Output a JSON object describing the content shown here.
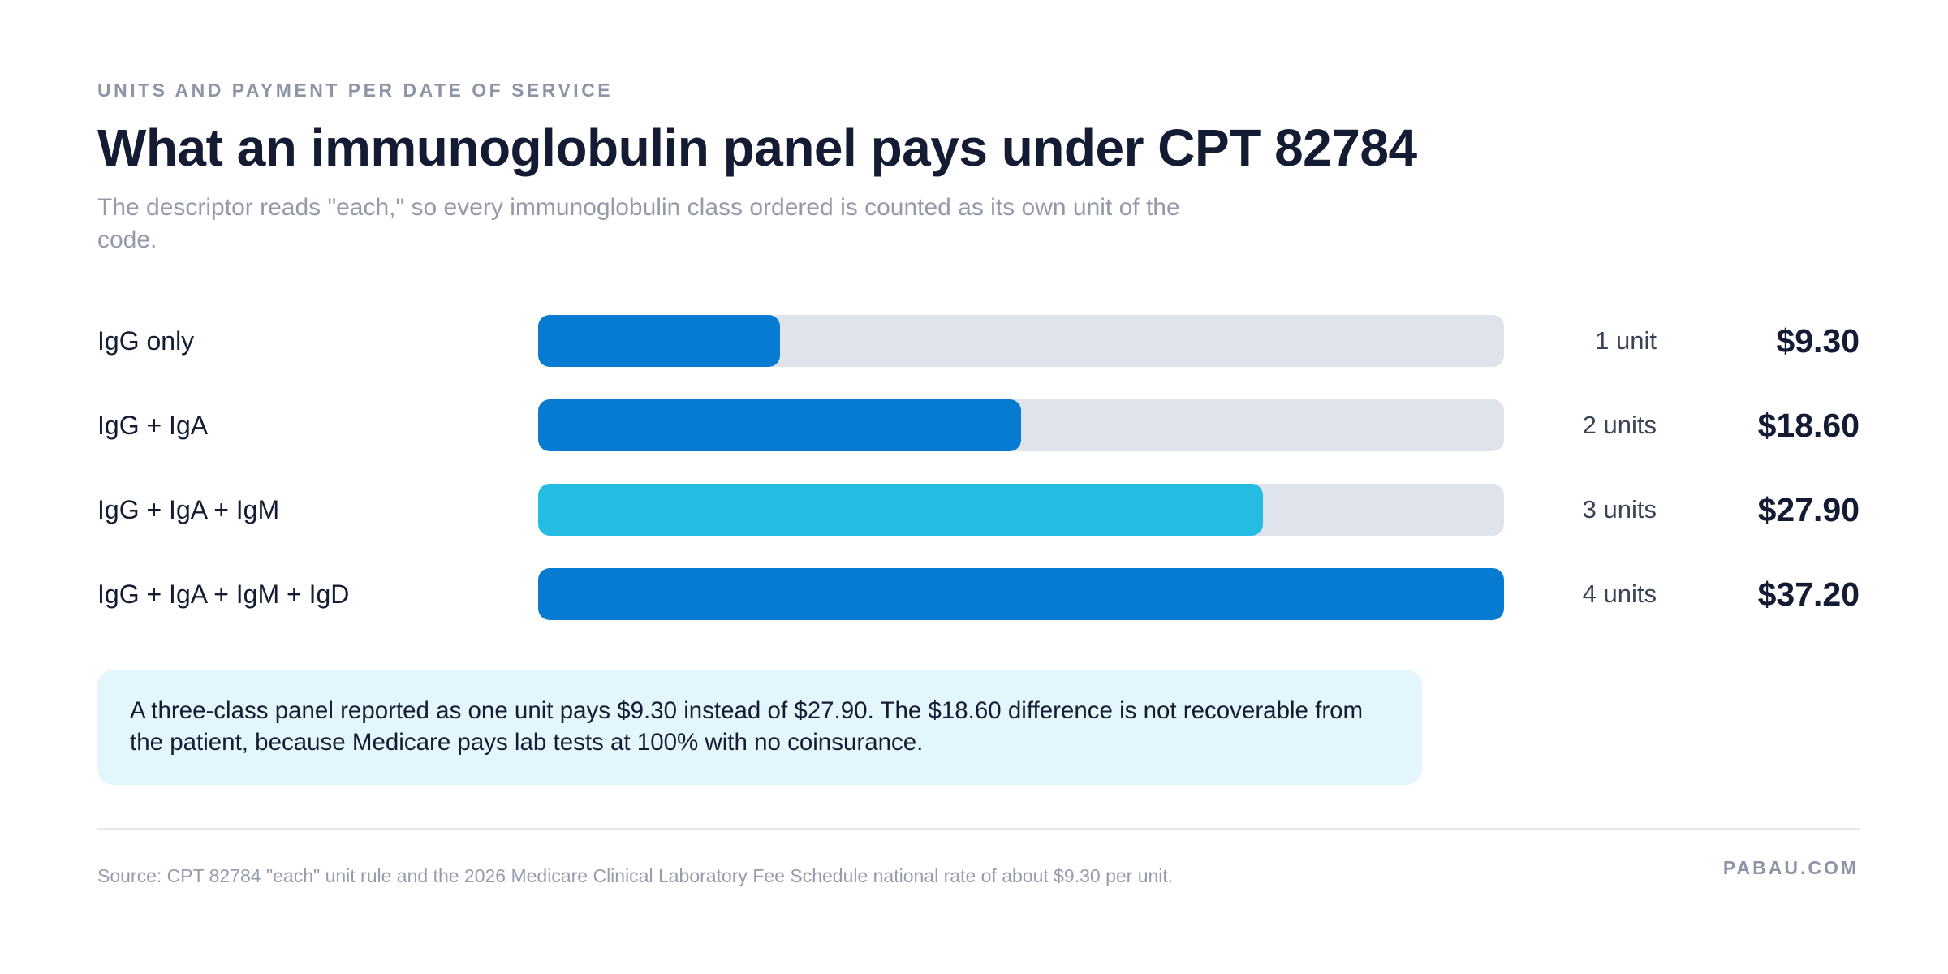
{
  "header": {
    "eyebrow": "UNITS AND PAYMENT PER DATE OF SERVICE",
    "title": "What an immunoglobulin panel pays under CPT 82784",
    "subtitle": "The descriptor reads \"each,\" so every immunoglobulin class ordered is counted as its own unit of the code."
  },
  "chart_data": {
    "type": "bar",
    "orientation": "horizontal",
    "categories": [
      "IgG only",
      "IgG + IgA",
      "IgG + IgA + IgM",
      "IgG + IgA + IgM + IgD"
    ],
    "values": [
      1,
      2,
      3,
      4
    ],
    "value_labels": [
      "1 unit",
      "2 units",
      "3 units",
      "4 units"
    ],
    "payments": [
      "$9.30",
      "$18.60",
      "$27.90",
      "$37.20"
    ],
    "xlim": [
      0,
      4
    ],
    "grid": false,
    "colors": [
      "#077bd2",
      "#077bd2",
      "#24bce0",
      "#077bd2"
    ],
    "track_color": "#dfe3ec"
  },
  "callout": {
    "text": "A three-class panel reported as one unit pays $9.30 instead of $27.90. The $18.60 difference is not recoverable from the patient, because Medicare pays lab tests at 100% with no coinsurance."
  },
  "footer": {
    "source": "Source: CPT 82784 \"each\" unit rule and the 2026 Medicare Clinical Laboratory Fee Schedule national rate of about $9.30 per unit.",
    "brand": "PABAU.COM"
  }
}
